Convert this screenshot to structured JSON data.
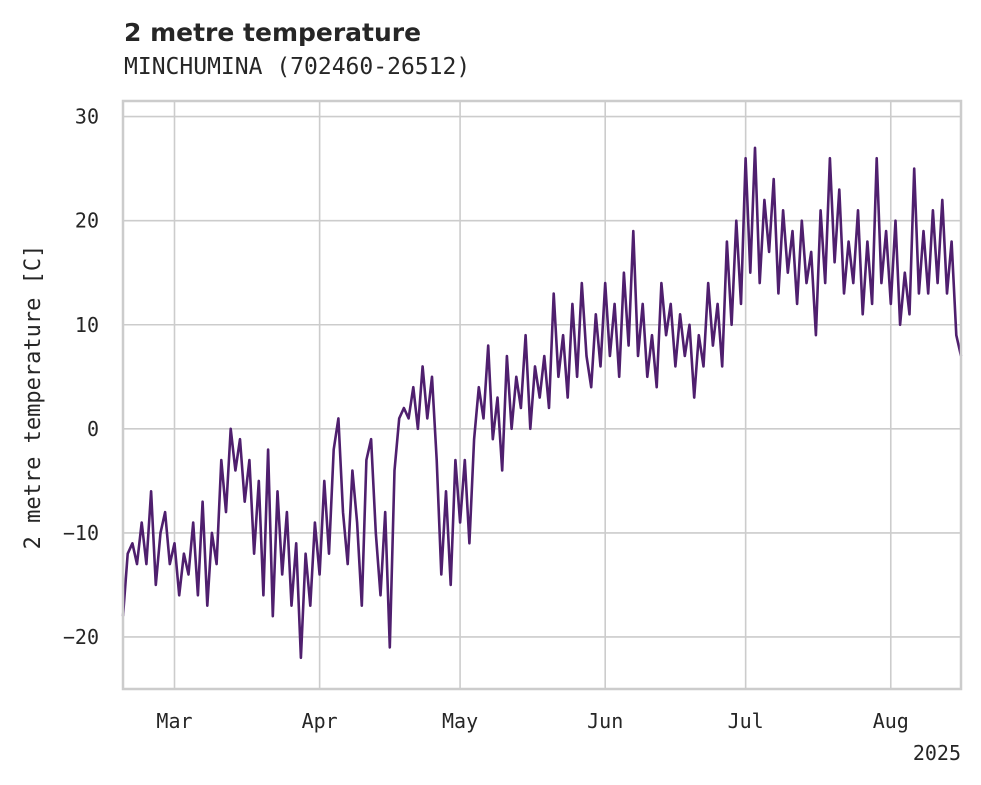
{
  "chart_data": {
    "type": "line",
    "title": "2 metre temperature",
    "subtitle": "MINCHUMINA (702460-26512)",
    "ylabel": "2 metre temperature [C]",
    "xlabel": "",
    "year_label": "2025",
    "x_tick_labels": [
      "Mar",
      "Apr",
      "May",
      "Jun",
      "Jul",
      "Aug"
    ],
    "x_tick_dates": [
      "2025-03-01",
      "2025-04-01",
      "2025-05-01",
      "2025-06-01",
      "2025-07-01",
      "2025-08-01"
    ],
    "y_ticks": [
      -20,
      -10,
      0,
      10,
      20,
      30
    ],
    "y_tick_labels": [
      "−20",
      "−10",
      "0",
      "10",
      "20",
      "30"
    ],
    "xlim": [
      "2025-02-18",
      "2025-08-16"
    ],
    "ylim": [
      -25,
      31.5
    ],
    "grid": true,
    "line_color": "#4f1f6e",
    "series": [
      {
        "points": [
          [
            "2025-02-18",
            -18
          ],
          [
            "2025-02-19",
            -12
          ],
          [
            "2025-02-20",
            -11
          ],
          [
            "2025-02-21",
            -13
          ],
          [
            "2025-02-22",
            -9
          ],
          [
            "2025-02-23",
            -13
          ],
          [
            "2025-02-24",
            -6
          ],
          [
            "2025-02-25",
            -15
          ],
          [
            "2025-02-26",
            -10
          ],
          [
            "2025-02-27",
            -8
          ],
          [
            "2025-02-28",
            -13
          ],
          [
            "2025-03-01",
            -11
          ],
          [
            "2025-03-02",
            -16
          ],
          [
            "2025-03-03",
            -12
          ],
          [
            "2025-03-04",
            -14
          ],
          [
            "2025-03-05",
            -9
          ],
          [
            "2025-03-06",
            -16
          ],
          [
            "2025-03-07",
            -7
          ],
          [
            "2025-03-08",
            -17
          ],
          [
            "2025-03-09",
            -10
          ],
          [
            "2025-03-10",
            -13
          ],
          [
            "2025-03-11",
            -3
          ],
          [
            "2025-03-12",
            -8
          ],
          [
            "2025-03-13",
            0
          ],
          [
            "2025-03-14",
            -4
          ],
          [
            "2025-03-15",
            -1
          ],
          [
            "2025-03-16",
            -7
          ],
          [
            "2025-03-17",
            -3
          ],
          [
            "2025-03-18",
            -12
          ],
          [
            "2025-03-19",
            -5
          ],
          [
            "2025-03-20",
            -16
          ],
          [
            "2025-03-21",
            -2
          ],
          [
            "2025-03-22",
            -18
          ],
          [
            "2025-03-23",
            -6
          ],
          [
            "2025-03-24",
            -14
          ],
          [
            "2025-03-25",
            -8
          ],
          [
            "2025-03-26",
            -17
          ],
          [
            "2025-03-27",
            -11
          ],
          [
            "2025-03-28",
            -22
          ],
          [
            "2025-03-29",
            -12
          ],
          [
            "2025-03-30",
            -17
          ],
          [
            "2025-03-31",
            -9
          ],
          [
            "2025-04-01",
            -14
          ],
          [
            "2025-04-02",
            -5
          ],
          [
            "2025-04-03",
            -12
          ],
          [
            "2025-04-04",
            -2
          ],
          [
            "2025-04-05",
            1
          ],
          [
            "2025-04-06",
            -8
          ],
          [
            "2025-04-07",
            -13
          ],
          [
            "2025-04-08",
            -4
          ],
          [
            "2025-04-09",
            -9
          ],
          [
            "2025-04-10",
            -17
          ],
          [
            "2025-04-11",
            -3
          ],
          [
            "2025-04-12",
            -1
          ],
          [
            "2025-04-13",
            -10
          ],
          [
            "2025-04-14",
            -16
          ],
          [
            "2025-04-15",
            -8
          ],
          [
            "2025-04-16",
            -21
          ],
          [
            "2025-04-17",
            -4
          ],
          [
            "2025-04-18",
            1
          ],
          [
            "2025-04-19",
            2
          ],
          [
            "2025-04-20",
            1
          ],
          [
            "2025-04-21",
            4
          ],
          [
            "2025-04-22",
            0
          ],
          [
            "2025-04-23",
            6
          ],
          [
            "2025-04-24",
            1
          ],
          [
            "2025-04-25",
            5
          ],
          [
            "2025-04-26",
            -3
          ],
          [
            "2025-04-27",
            -14
          ],
          [
            "2025-04-28",
            -6
          ],
          [
            "2025-04-29",
            -15
          ],
          [
            "2025-04-30",
            -3
          ],
          [
            "2025-05-01",
            -9
          ],
          [
            "2025-05-02",
            -3
          ],
          [
            "2025-05-03",
            -11
          ],
          [
            "2025-05-04",
            -1
          ],
          [
            "2025-05-05",
            4
          ],
          [
            "2025-05-06",
            1
          ],
          [
            "2025-05-07",
            8
          ],
          [
            "2025-05-08",
            -1
          ],
          [
            "2025-05-09",
            3
          ],
          [
            "2025-05-10",
            -4
          ],
          [
            "2025-05-11",
            7
          ],
          [
            "2025-05-12",
            0
          ],
          [
            "2025-05-13",
            5
          ],
          [
            "2025-05-14",
            2
          ],
          [
            "2025-05-15",
            9
          ],
          [
            "2025-05-16",
            0
          ],
          [
            "2025-05-17",
            6
          ],
          [
            "2025-05-18",
            3
          ],
          [
            "2025-05-19",
            7
          ],
          [
            "2025-05-20",
            2
          ],
          [
            "2025-05-21",
            13
          ],
          [
            "2025-05-22",
            5
          ],
          [
            "2025-05-23",
            9
          ],
          [
            "2025-05-24",
            3
          ],
          [
            "2025-05-25",
            12
          ],
          [
            "2025-05-26",
            5
          ],
          [
            "2025-05-27",
            14
          ],
          [
            "2025-05-28",
            7
          ],
          [
            "2025-05-29",
            4
          ],
          [
            "2025-05-30",
            11
          ],
          [
            "2025-05-31",
            6
          ],
          [
            "2025-06-01",
            14
          ],
          [
            "2025-06-02",
            7
          ],
          [
            "2025-06-03",
            12
          ],
          [
            "2025-06-04",
            5
          ],
          [
            "2025-06-05",
            15
          ],
          [
            "2025-06-06",
            8
          ],
          [
            "2025-06-07",
            19
          ],
          [
            "2025-06-08",
            7
          ],
          [
            "2025-06-09",
            12
          ],
          [
            "2025-06-10",
            5
          ],
          [
            "2025-06-11",
            9
          ],
          [
            "2025-06-12",
            4
          ],
          [
            "2025-06-13",
            14
          ],
          [
            "2025-06-14",
            9
          ],
          [
            "2025-06-15",
            12
          ],
          [
            "2025-06-16",
            6
          ],
          [
            "2025-06-17",
            11
          ],
          [
            "2025-06-18",
            7
          ],
          [
            "2025-06-19",
            10
          ],
          [
            "2025-06-20",
            3
          ],
          [
            "2025-06-21",
            9
          ],
          [
            "2025-06-22",
            6
          ],
          [
            "2025-06-23",
            14
          ],
          [
            "2025-06-24",
            8
          ],
          [
            "2025-06-25",
            12
          ],
          [
            "2025-06-26",
            6
          ],
          [
            "2025-06-27",
            18
          ],
          [
            "2025-06-28",
            10
          ],
          [
            "2025-06-29",
            20
          ],
          [
            "2025-06-30",
            12
          ],
          [
            "2025-07-01",
            26
          ],
          [
            "2025-07-02",
            15
          ],
          [
            "2025-07-03",
            27
          ],
          [
            "2025-07-04",
            14
          ],
          [
            "2025-07-05",
            22
          ],
          [
            "2025-07-06",
            17
          ],
          [
            "2025-07-07",
            24
          ],
          [
            "2025-07-08",
            13
          ],
          [
            "2025-07-09",
            21
          ],
          [
            "2025-07-10",
            15
          ],
          [
            "2025-07-11",
            19
          ],
          [
            "2025-07-12",
            12
          ],
          [
            "2025-07-13",
            20
          ],
          [
            "2025-07-14",
            14
          ],
          [
            "2025-07-15",
            17
          ],
          [
            "2025-07-16",
            9
          ],
          [
            "2025-07-17",
            21
          ],
          [
            "2025-07-18",
            14
          ],
          [
            "2025-07-19",
            26
          ],
          [
            "2025-07-20",
            16
          ],
          [
            "2025-07-21",
            23
          ],
          [
            "2025-07-22",
            13
          ],
          [
            "2025-07-23",
            18
          ],
          [
            "2025-07-24",
            14
          ],
          [
            "2025-07-25",
            21
          ],
          [
            "2025-07-26",
            11
          ],
          [
            "2025-07-27",
            18
          ],
          [
            "2025-07-28",
            12
          ],
          [
            "2025-07-29",
            26
          ],
          [
            "2025-07-30",
            14
          ],
          [
            "2025-07-31",
            19
          ],
          [
            "2025-08-01",
            12
          ],
          [
            "2025-08-02",
            20
          ],
          [
            "2025-08-03",
            10
          ],
          [
            "2025-08-04",
            15
          ],
          [
            "2025-08-05",
            11
          ],
          [
            "2025-08-06",
            25
          ],
          [
            "2025-08-07",
            13
          ],
          [
            "2025-08-08",
            19
          ],
          [
            "2025-08-09",
            13
          ],
          [
            "2025-08-10",
            21
          ],
          [
            "2025-08-11",
            14
          ],
          [
            "2025-08-12",
            22
          ],
          [
            "2025-08-13",
            13
          ],
          [
            "2025-08-14",
            18
          ],
          [
            "2025-08-15",
            9
          ],
          [
            "2025-08-16",
            7
          ]
        ]
      }
    ]
  }
}
